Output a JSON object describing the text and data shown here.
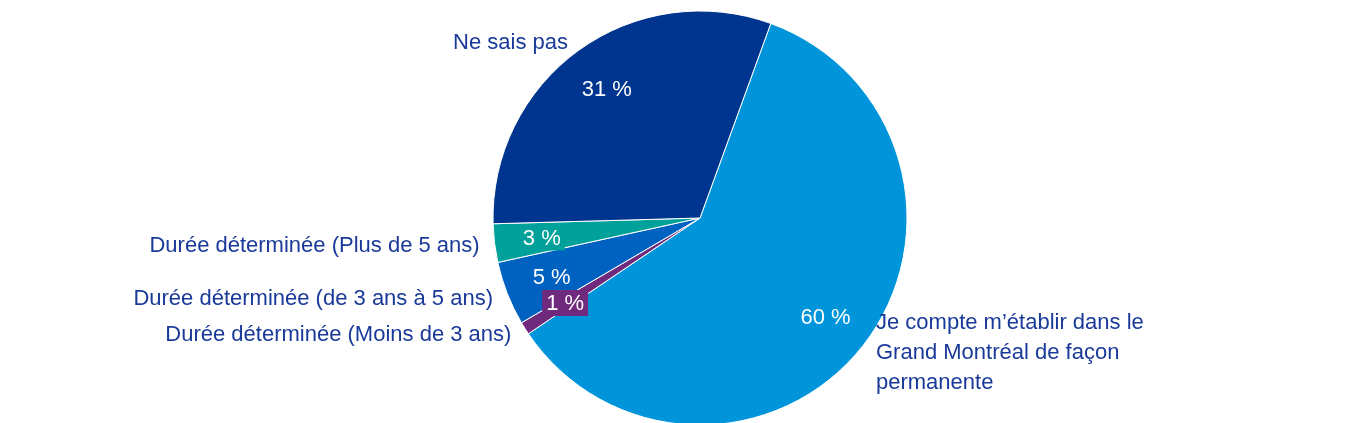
{
  "chart_data": {
    "type": "pie",
    "categories": [
      "Je compte m’établir dans le Grand Montréal de façon permanente",
      "Durée déterminée (Moins de 3 ans)",
      "Durée déterminée (de 3 ans à 5 ans)",
      "Durée déterminée (Plus de 5 ans)",
      "Ne sais pas"
    ],
    "values": [
      60,
      1,
      5,
      3,
      31
    ],
    "value_labels": [
      "60 %",
      "1 %",
      "5 %",
      "3 %",
      "31 %"
    ],
    "colors": [
      "#0095da",
      "#6f2a7e",
      "#0062c0",
      "#00a19a",
      "#00358f"
    ]
  }
}
